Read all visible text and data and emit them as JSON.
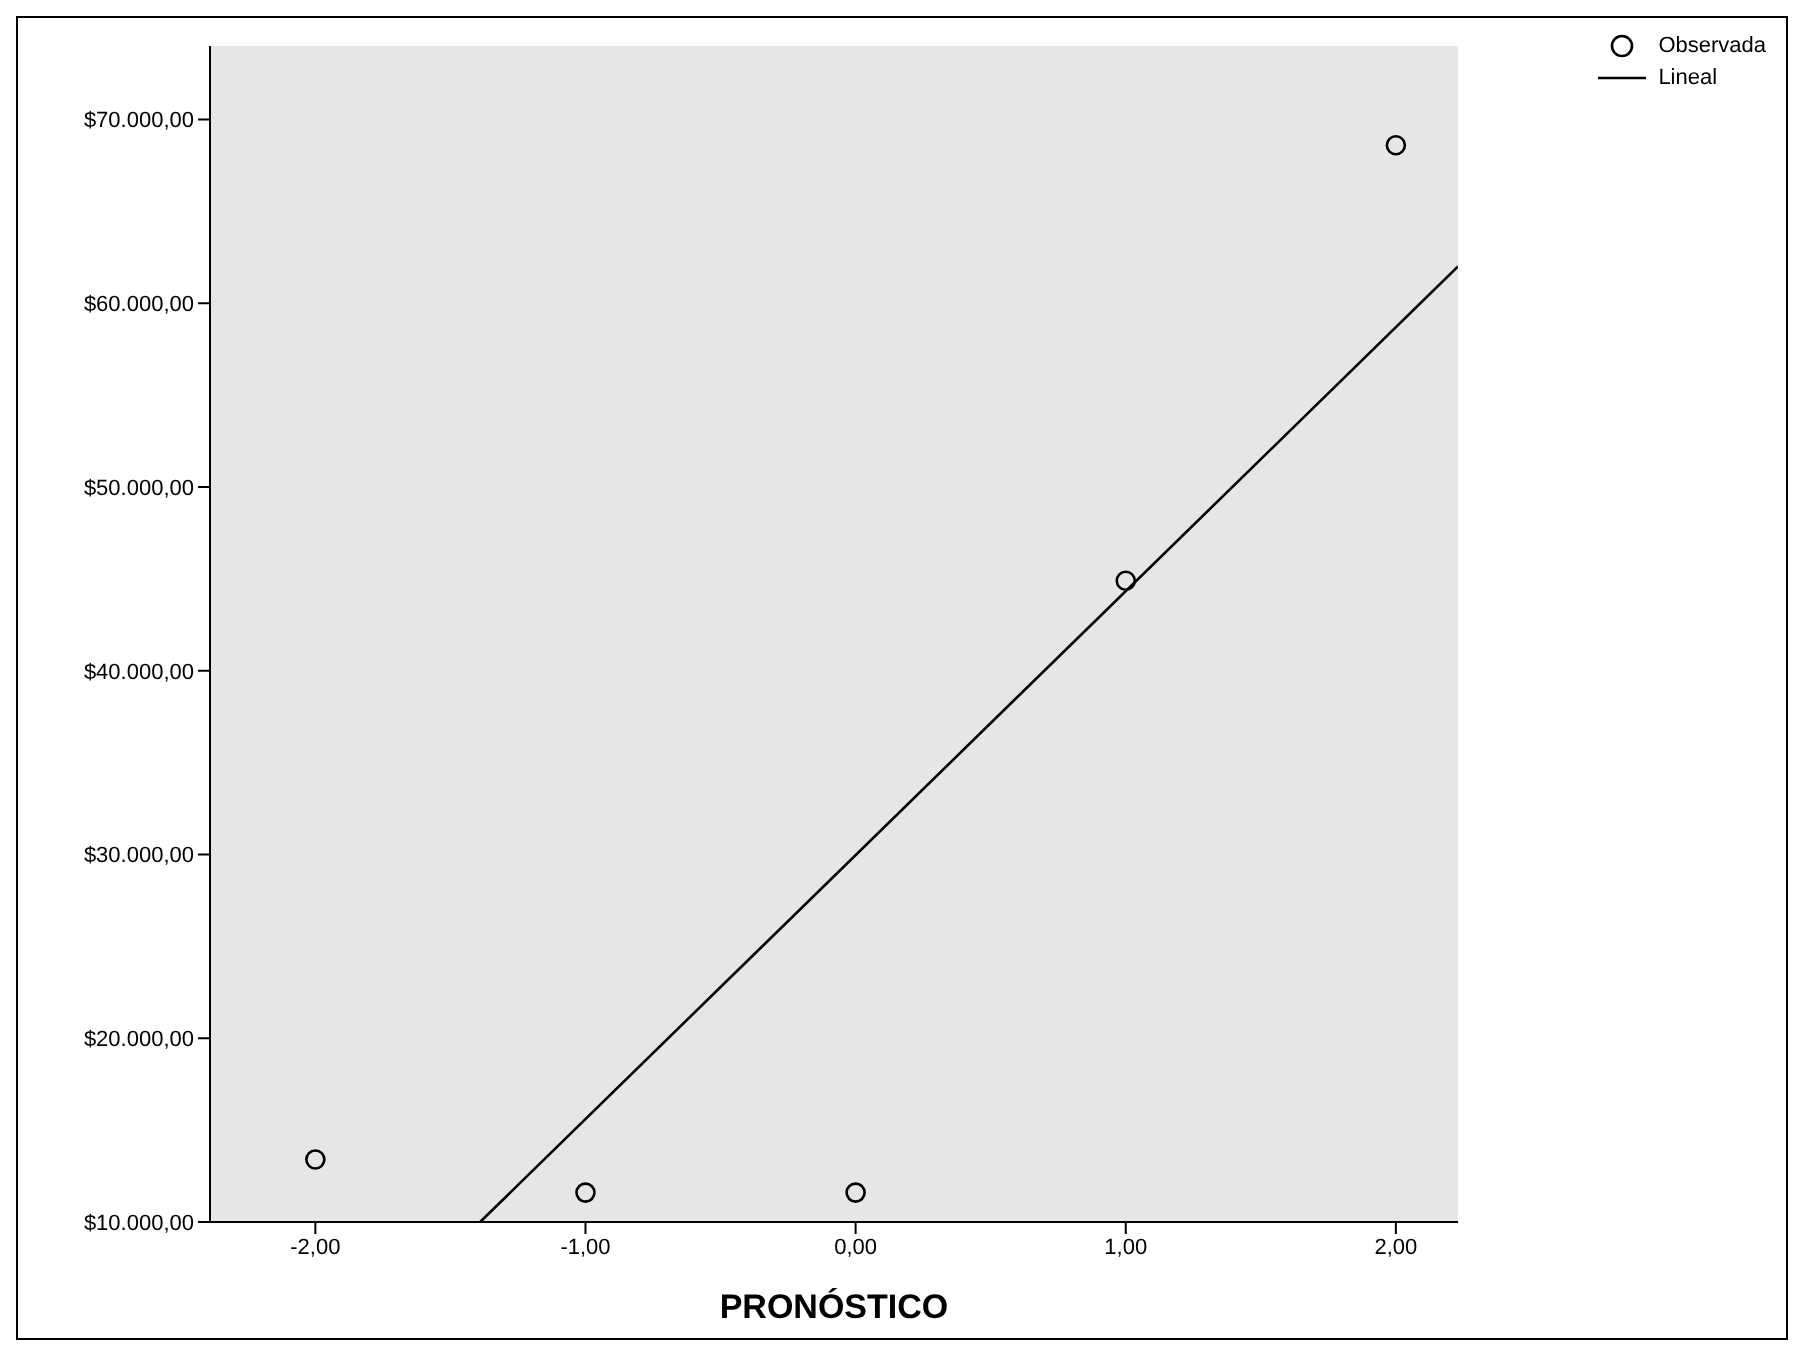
{
  "chart_data": {
    "type": "scatter",
    "xlabel": "PRONÓSTICO",
    "xlim": [
      -2.39,
      2.23
    ],
    "ylim": [
      10000,
      74000
    ],
    "xticks": [
      {
        "value": -2,
        "label": "-2,00"
      },
      {
        "value": -1,
        "label": "-1,00"
      },
      {
        "value": 0,
        "label": "0,00"
      },
      {
        "value": 1,
        "label": "1,00"
      },
      {
        "value": 2,
        "label": "2,00"
      }
    ],
    "yticks": [
      {
        "value": 10000,
        "label": "$10.000,00"
      },
      {
        "value": 20000,
        "label": "$20.000,00"
      },
      {
        "value": 30000,
        "label": "$30.000,00"
      },
      {
        "value": 40000,
        "label": "$40.000,00"
      },
      {
        "value": 50000,
        "label": "$50.000,00"
      },
      {
        "value": 60000,
        "label": "$60.000,00"
      },
      {
        "value": 70000,
        "label": "$70.000,00"
      }
    ],
    "legend": "top right",
    "series": [
      {
        "name": "Observada",
        "marker": "circle",
        "color": "#000000",
        "x": [
          -2,
          -1,
          0,
          1,
          2
        ],
        "values": [
          13400,
          11600,
          11600,
          44900,
          68600
        ]
      },
      {
        "name": "Lineal",
        "type": "line",
        "marker": "none",
        "color": "#000000",
        "x": [
          -1.39,
          2.23
        ],
        "values": [
          10000,
          62000
        ]
      }
    ]
  }
}
